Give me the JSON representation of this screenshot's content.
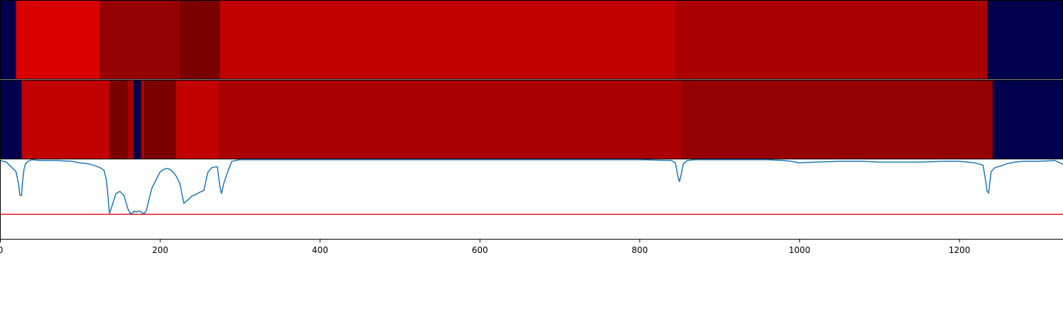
{
  "chart_data": {
    "type": "heatmap",
    "xlim": [
      0,
      1330
    ],
    "x_ticks": [
      0,
      200,
      400,
      600,
      800,
      1000,
      1200
    ],
    "x_tick_labels": [
      "0",
      "200",
      "400",
      "600",
      "800",
      "1000",
      "1200"
    ],
    "grid": false,
    "legend": "none",
    "colors": {
      "navy": "#00004c",
      "red_bright": "#d90000",
      "red_medium": "#c10000",
      "red_dark": "#aa0000",
      "red_darker": "#950000",
      "red_darkest": "#7a0000",
      "line": "#1f77b4",
      "threshold_line": "#e31a1c"
    },
    "rows": [
      {
        "segments": [
          {
            "start": 0,
            "end": 20,
            "color": "navy"
          },
          {
            "start": 20,
            "end": 125,
            "color": "red_bright"
          },
          {
            "start": 125,
            "end": 225,
            "color": "red_darker"
          },
          {
            "start": 225,
            "end": 275,
            "color": "red_darkest"
          },
          {
            "start": 275,
            "end": 845,
            "color": "red_medium"
          },
          {
            "start": 845,
            "end": 1235,
            "color": "red_dark"
          },
          {
            "start": 1235,
            "end": 1330,
            "color": "navy"
          }
        ]
      },
      {
        "segments": [
          {
            "start": 0,
            "end": 27,
            "color": "navy"
          },
          {
            "start": 27,
            "end": 137,
            "color": "red_medium"
          },
          {
            "start": 137,
            "end": 160,
            "color": "red_darkest"
          },
          {
            "start": 160,
            "end": 167,
            "color": "red_dark"
          },
          {
            "start": 167,
            "end": 176,
            "color": "navy"
          },
          {
            "start": 176,
            "end": 178,
            "color": "red_darkest"
          },
          {
            "start": 178,
            "end": 180,
            "color": "red_medium"
          },
          {
            "start": 180,
            "end": 220,
            "color": "red_darkest"
          },
          {
            "start": 220,
            "end": 273,
            "color": "red_medium"
          },
          {
            "start": 273,
            "end": 852,
            "color": "red_dark"
          },
          {
            "start": 852,
            "end": 1242,
            "color": "red_darker"
          },
          {
            "start": 1242,
            "end": 1330,
            "color": "navy"
          }
        ]
      }
    ],
    "line_panel": {
      "ylim": [
        0,
        1
      ],
      "threshold": 0.31,
      "series": {
        "x": [
          0,
          8,
          15,
          20,
          23,
          25,
          27,
          28,
          30,
          32,
          35,
          40,
          50,
          70,
          90,
          100,
          110,
          120,
          125,
          130,
          133,
          135,
          137,
          140,
          145,
          150,
          155,
          160,
          163,
          166,
          168,
          170,
          175,
          178,
          180,
          183,
          186,
          190,
          195,
          200,
          205,
          210,
          215,
          220,
          225,
          230,
          235,
          240,
          245,
          250,
          255,
          260,
          265,
          270,
          272,
          275,
          277,
          280,
          285,
          290,
          300,
          350,
          400,
          500,
          600,
          700,
          800,
          840,
          845,
          848,
          850,
          852,
          855,
          860,
          870,
          900,
          960,
          980,
          990,
          1000,
          1020,
          1050,
          1080,
          1100,
          1150,
          1180,
          1200,
          1220,
          1230,
          1233,
          1235,
          1237,
          1240,
          1245,
          1255,
          1260,
          1270,
          1280,
          1300,
          1320,
          1330
        ],
        "y": [
          0.99,
          0.97,
          0.9,
          0.85,
          0.7,
          0.55,
          0.55,
          0.7,
          0.88,
          0.95,
          0.98,
          1.0,
          0.99,
          0.99,
          0.98,
          0.96,
          0.95,
          0.92,
          0.9,
          0.87,
          0.75,
          0.55,
          0.32,
          0.41,
          0.57,
          0.6,
          0.55,
          0.38,
          0.32,
          0.33,
          0.35,
          0.34,
          0.35,
          0.33,
          0.32,
          0.35,
          0.48,
          0.64,
          0.74,
          0.84,
          0.88,
          0.89,
          0.86,
          0.8,
          0.7,
          0.45,
          0.49,
          0.54,
          0.56,
          0.59,
          0.61,
          0.84,
          0.9,
          0.91,
          0.91,
          0.67,
          0.57,
          0.7,
          0.85,
          0.98,
          1.0,
          1.0,
          1.0,
          1.0,
          1.0,
          1.0,
          1.0,
          0.99,
          0.96,
          0.8,
          0.72,
          0.8,
          0.95,
          0.99,
          1.0,
          1.0,
          1.0,
          0.99,
          0.98,
          0.96,
          0.97,
          0.98,
          0.98,
          0.97,
          0.97,
          0.98,
          0.98,
          0.96,
          0.93,
          0.75,
          0.6,
          0.58,
          0.85,
          0.9,
          0.93,
          0.95,
          0.97,
          0.98,
          0.98,
          0.99,
          0.94
        ]
      }
    }
  }
}
